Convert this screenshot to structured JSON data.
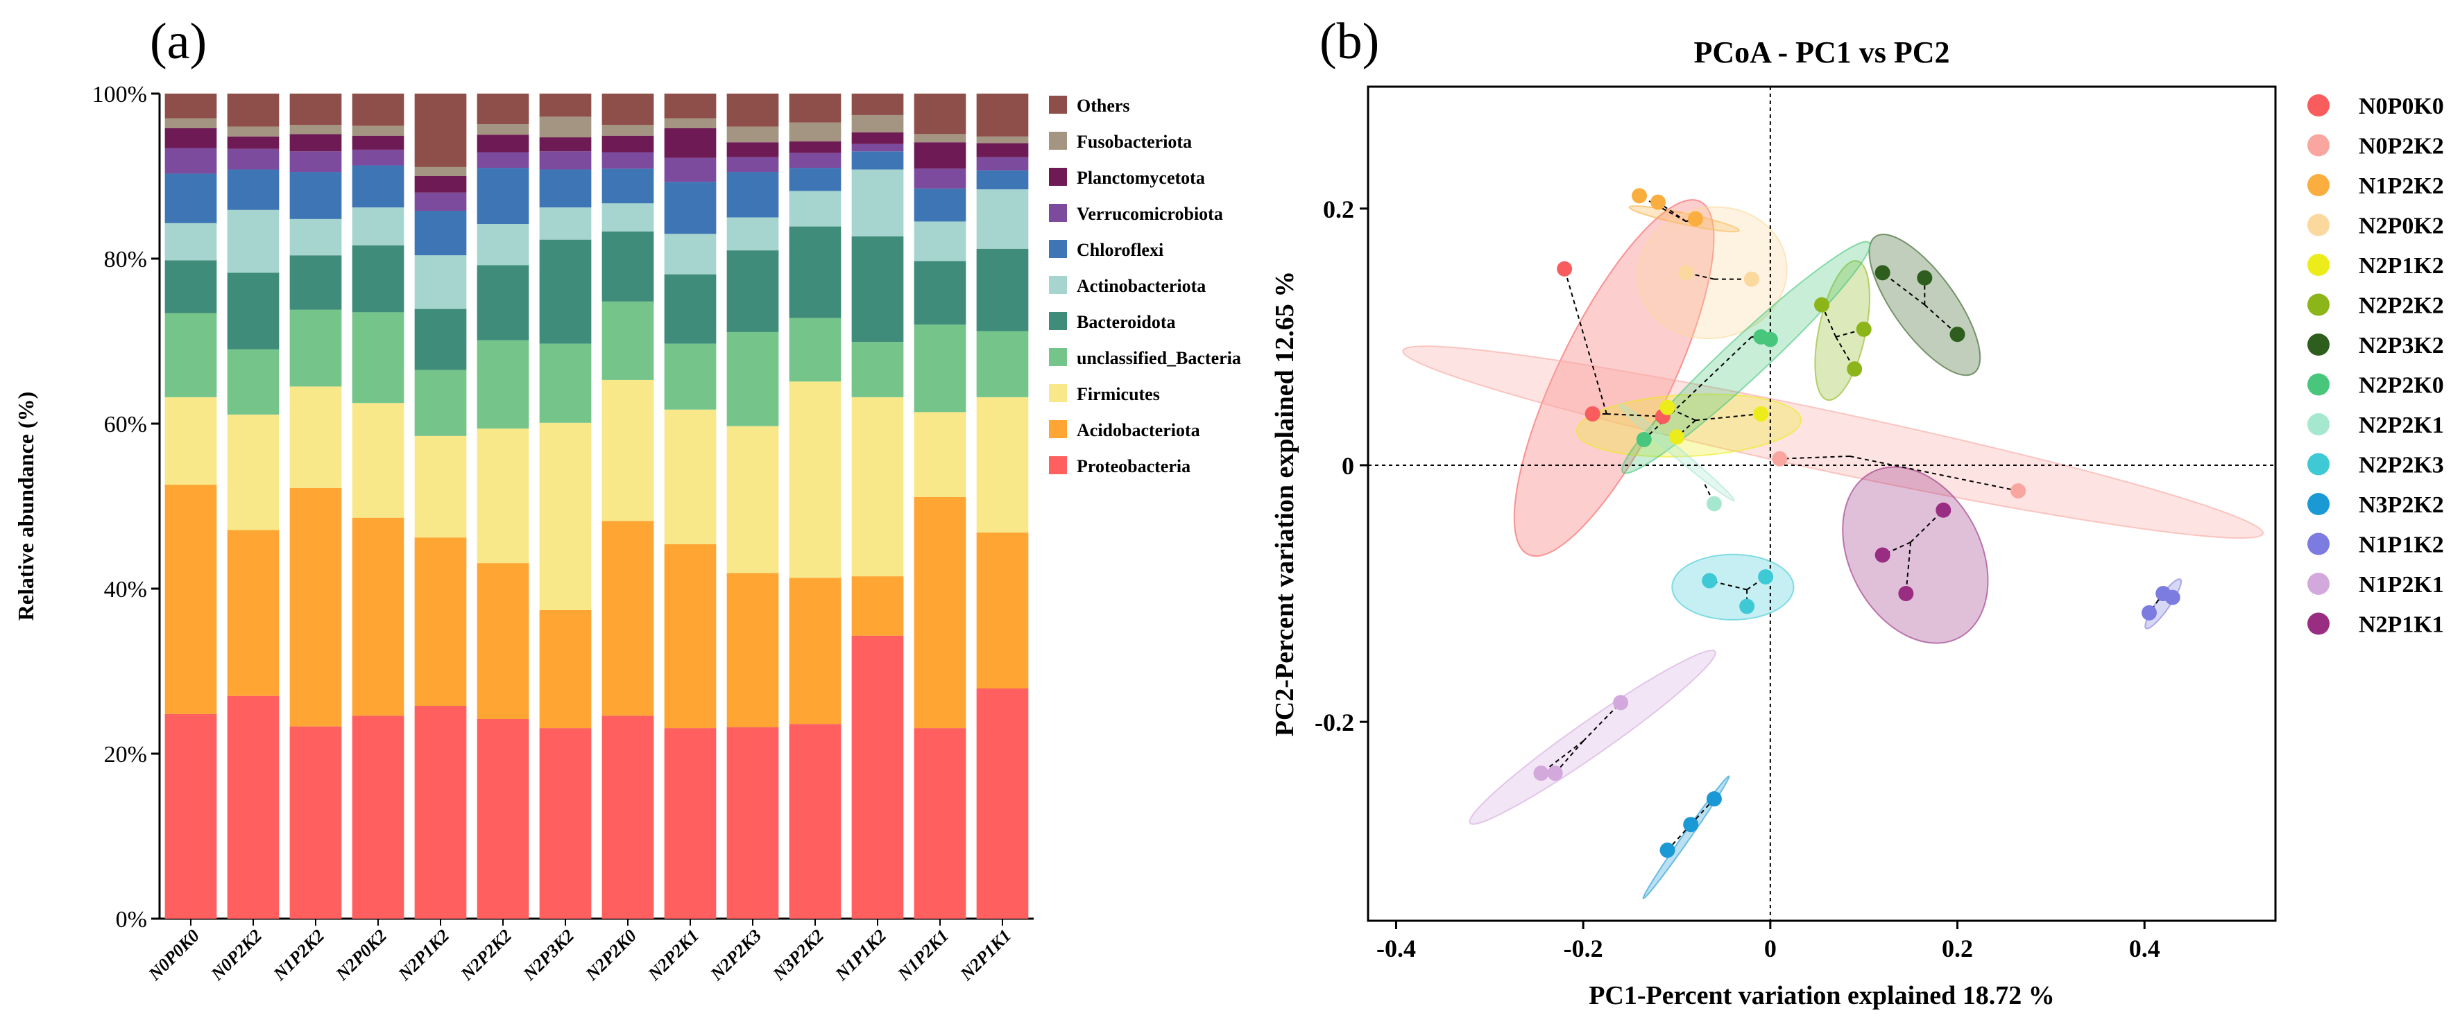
{
  "panel_labels": {
    "a": "(a)",
    "b": "(b)"
  },
  "chart_data": [
    {
      "type": "stacked-bar",
      "ylabel": "Relative abundance (%)",
      "ylim": [
        0,
        100
      ],
      "yticks": [
        "0%",
        "20%",
        "40%",
        "60%",
        "80%",
        "100%"
      ],
      "categories": [
        "N0P0K0",
        "N0P2K2",
        "N1P2K2",
        "N2P0K2",
        "N2P1K2",
        "N2P2K2",
        "N2P3K2",
        "N2P2K0",
        "N2P2K1",
        "N2P2K3",
        "N3P2K2",
        "N1P1K2",
        "N1P2K1",
        "N2P1K1"
      ],
      "series": [
        {
          "name": "Proteobacteria",
          "color": "#ff5f5f",
          "values": [
            24.8,
            27.0,
            23.3,
            24.6,
            25.8,
            24.2,
            23.1,
            24.6,
            23.1,
            23.2,
            23.6,
            34.3,
            23.1,
            27.9
          ]
        },
        {
          "name": "Acidobacteriota",
          "color": "#ffa533",
          "values": [
            27.8,
            20.1,
            28.9,
            24.0,
            20.4,
            18.9,
            14.3,
            23.6,
            22.3,
            18.7,
            17.7,
            7.2,
            28.0,
            18.9
          ]
        },
        {
          "name": "Firmicutes",
          "color": "#f9e88a",
          "values": [
            10.6,
            14.0,
            12.3,
            13.9,
            12.3,
            16.3,
            22.7,
            17.1,
            16.3,
            17.8,
            23.8,
            21.7,
            10.3,
            16.4
          ]
        },
        {
          "name": "unclassified_Bacteria",
          "color": "#75c58b",
          "values": [
            10.2,
            7.9,
            9.3,
            11.0,
            8.0,
            10.7,
            9.6,
            9.5,
            8.0,
            11.4,
            7.7,
            6.7,
            10.6,
            8.0
          ]
        },
        {
          "name": "Bacteroidota",
          "color": "#3e8c79",
          "values": [
            6.4,
            9.3,
            6.6,
            8.1,
            7.4,
            9.1,
            12.6,
            8.5,
            8.4,
            9.9,
            11.1,
            12.8,
            7.7,
            10.0
          ]
        },
        {
          "name": "Actinobacteriota",
          "color": "#a6d5d0",
          "values": [
            4.5,
            7.6,
            4.4,
            4.6,
            6.5,
            5.0,
            3.9,
            3.4,
            4.9,
            4.0,
            4.3,
            8.1,
            4.8,
            7.2
          ]
        },
        {
          "name": "Chloroflexi",
          "color": "#3e76b5",
          "values": [
            6.0,
            4.9,
            5.7,
            5.1,
            5.4,
            6.8,
            4.6,
            4.2,
            6.3,
            5.5,
            2.8,
            2.2,
            4.0,
            2.3
          ]
        },
        {
          "name": "Verrucomicrobiota",
          "color": "#7d4b9d",
          "values": [
            3.1,
            2.5,
            2.5,
            1.9,
            2.2,
            1.9,
            2.2,
            2.0,
            2.9,
            1.8,
            1.8,
            0.9,
            2.4,
            1.6
          ]
        },
        {
          "name": "Planctomycetota",
          "color": "#6e1b55",
          "values": [
            2.4,
            1.5,
            2.1,
            1.7,
            2.0,
            2.1,
            1.7,
            2.0,
            3.6,
            1.8,
            1.4,
            1.4,
            3.2,
            1.7
          ]
        },
        {
          "name": "Fusobacteriota",
          "color": "#a39581",
          "values": [
            1.2,
            1.2,
            1.1,
            1.2,
            1.1,
            1.3,
            2.5,
            1.3,
            1.2,
            1.9,
            2.3,
            2.1,
            1.0,
            0.8
          ]
        },
        {
          "name": "Others",
          "color": "#8e4f4a",
          "values": [
            3.0,
            4.0,
            3.8,
            3.9,
            8.9,
            3.7,
            2.8,
            3.8,
            3.0,
            4.0,
            3.5,
            2.6,
            4.9,
            5.2
          ]
        }
      ]
    },
    {
      "type": "scatter",
      "title": "PCoA - PC1 vs PC2",
      "xlabel": "PC1-Percent variation explained 18.72 %",
      "ylabel": "PC2-Percent variation explained 12.65 %",
      "xlim": [
        -0.43,
        0.54
      ],
      "ylim": [
        -0.355,
        0.295
      ],
      "xticks": [
        {
          "v": -0.4,
          "label": "-0.4"
        },
        {
          "v": -0.2,
          "label": "-0.2"
        },
        {
          "v": 0.0,
          "label": "0"
        },
        {
          "v": 0.2,
          "label": "0.2"
        },
        {
          "v": 0.4,
          "label": "0.4"
        }
      ],
      "yticks": [
        {
          "v": -0.2,
          "label": "-0.2"
        },
        {
          "v": 0.0,
          "label": "0"
        },
        {
          "v": 0.2,
          "label": "0.2"
        }
      ],
      "groups": [
        {
          "name": "N0P0K0",
          "color": "#f95c5c",
          "centroid": [
            -0.175,
            0.04
          ],
          "ellipse": {
            "cx": -0.167,
            "cy": 0.068,
            "rx": 0.21,
            "ry": 0.06,
            "angle": 64
          },
          "points": [
            [
              -0.22,
              0.153
            ],
            [
              -0.19,
              0.04
            ],
            [
              -0.115,
              0.038
            ]
          ]
        },
        {
          "name": "N0P2K2",
          "color": "#f9a6a0",
          "centroid": [
            0.085,
            0.007
          ],
          "ellipse": {
            "cx": 0.067,
            "cy": 0.018,
            "rx": 0.47,
            "ry": 0.032,
            "angle": -12
          },
          "points": [
            [
              0.01,
              0.005
            ],
            [
              0.265,
              -0.02
            ]
          ]
        },
        {
          "name": "N1P2K2",
          "color": "#f9ae3f",
          "centroid": [
            -0.09,
            0.19
          ],
          "ellipse": {
            "cx": -0.092,
            "cy": 0.192,
            "rx": 0.06,
            "ry": 0.006,
            "angle": -12
          },
          "points": [
            [
              -0.14,
              0.21
            ],
            [
              -0.12,
              0.205
            ],
            [
              -0.08,
              0.192
            ]
          ]
        },
        {
          "name": "N2P0K2",
          "color": "#fbd89d",
          "centroid": [
            -0.06,
            0.145
          ],
          "ellipse": {
            "cx": -0.062,
            "cy": 0.15,
            "rx": 0.08,
            "ry": 0.07,
            "angle": 10
          },
          "points": [
            [
              -0.09,
              0.15
            ],
            [
              -0.02,
              0.145
            ]
          ]
        },
        {
          "name": "N2P1K2",
          "color": "#ecec1a",
          "centroid": [
            -0.08,
            0.035
          ],
          "ellipse": {
            "cx": -0.087,
            "cy": 0.031,
            "rx": 0.12,
            "ry": 0.033,
            "angle": 3
          },
          "points": [
            [
              -0.11,
              0.045
            ],
            [
              -0.1,
              0.022
            ],
            [
              -0.01,
              0.04
            ]
          ]
        },
        {
          "name": "N2P2K2",
          "color": "#8cb51a",
          "centroid": [
            0.07,
            0.1
          ],
          "ellipse": {
            "cx": 0.077,
            "cy": 0.105,
            "rx": 0.076,
            "ry": 0.025,
            "angle": 78
          },
          "points": [
            [
              0.055,
              0.125
            ],
            [
              0.1,
              0.106
            ],
            [
              0.09,
              0.075
            ]
          ]
        },
        {
          "name": "N2P3K2",
          "color": "#2e5e1e",
          "centroid": [
            0.165,
            0.125
          ],
          "ellipse": {
            "cx": 0.165,
            "cy": 0.125,
            "rx": 0.09,
            "ry": 0.033,
            "angle": -54
          },
          "points": [
            [
              0.12,
              0.15
            ],
            [
              0.165,
              0.146
            ],
            [
              0.2,
              0.102
            ]
          ]
        },
        {
          "name": "N2P2K0",
          "color": "#48c67c",
          "centroid": [
            -0.02,
            0.1
          ],
          "ellipse": {
            "cx": -0.026,
            "cy": 0.084,
            "rx": 0.18,
            "ry": 0.022,
            "angle": 43
          },
          "points": [
            [
              -0.01,
              0.1
            ],
            [
              0.0,
              0.098
            ],
            [
              -0.135,
              0.02
            ]
          ]
        },
        {
          "name": "N2P2K1",
          "color": "#a6e8cf",
          "centroid": [
            -0.07,
            -0.015
          ],
          "ellipse": {
            "cx": -0.1,
            "cy": 0.01,
            "rx": 0.08,
            "ry": 0.005,
            "angle": -40
          },
          "points": [
            [
              -0.06,
              -0.03
            ]
          ]
        },
        {
          "name": "N2P2K3",
          "color": "#3ec9d4",
          "centroid": [
            -0.025,
            -0.097
          ],
          "ellipse": {
            "cx": -0.04,
            "cy": -0.095,
            "rx": 0.065,
            "ry": 0.035,
            "angle": 0
          },
          "points": [
            [
              -0.065,
              -0.09
            ],
            [
              -0.005,
              -0.087
            ],
            [
              -0.025,
              -0.11
            ]
          ]
        },
        {
          "name": "N3P2K2",
          "color": "#1a99d4",
          "centroid": [
            -0.085,
            -0.28
          ],
          "ellipse": {
            "cx": -0.09,
            "cy": -0.29,
            "rx": 0.08,
            "ry": 0.004,
            "angle": 55
          },
          "points": [
            [
              -0.06,
              -0.26
            ],
            [
              -0.085,
              -0.28
            ],
            [
              -0.11,
              -0.3
            ]
          ]
        },
        {
          "name": "N1P1K2",
          "color": "#7b7be0",
          "centroid": [
            0.415,
            -0.105
          ],
          "ellipse": {
            "cx": 0.42,
            "cy": -0.108,
            "rx": 0.032,
            "ry": 0.007,
            "angle": 55
          },
          "points": [
            [
              0.42,
              -0.1
            ],
            [
              0.43,
              -0.103
            ],
            [
              0.405,
              -0.115
            ]
          ]
        },
        {
          "name": "N1P2K1",
          "color": "#d3a8dd",
          "centroid": [
            -0.2,
            -0.215
          ],
          "ellipse": {
            "cx": -0.19,
            "cy": -0.212,
            "rx": 0.16,
            "ry": 0.018,
            "angle": 35
          },
          "points": [
            [
              -0.16,
              -0.185
            ],
            [
              -0.23,
              -0.24
            ],
            [
              -0.245,
              -0.24
            ]
          ]
        },
        {
          "name": "N2P1K1",
          "color": "#992d82",
          "centroid": [
            0.15,
            -0.06
          ],
          "ellipse": {
            "cx": 0.155,
            "cy": -0.07,
            "rx": 0.1,
            "ry": 0.07,
            "angle": -62
          },
          "points": [
            [
              0.185,
              -0.035
            ],
            [
              0.12,
              -0.07
            ],
            [
              0.145,
              -0.1
            ]
          ]
        }
      ]
    }
  ]
}
